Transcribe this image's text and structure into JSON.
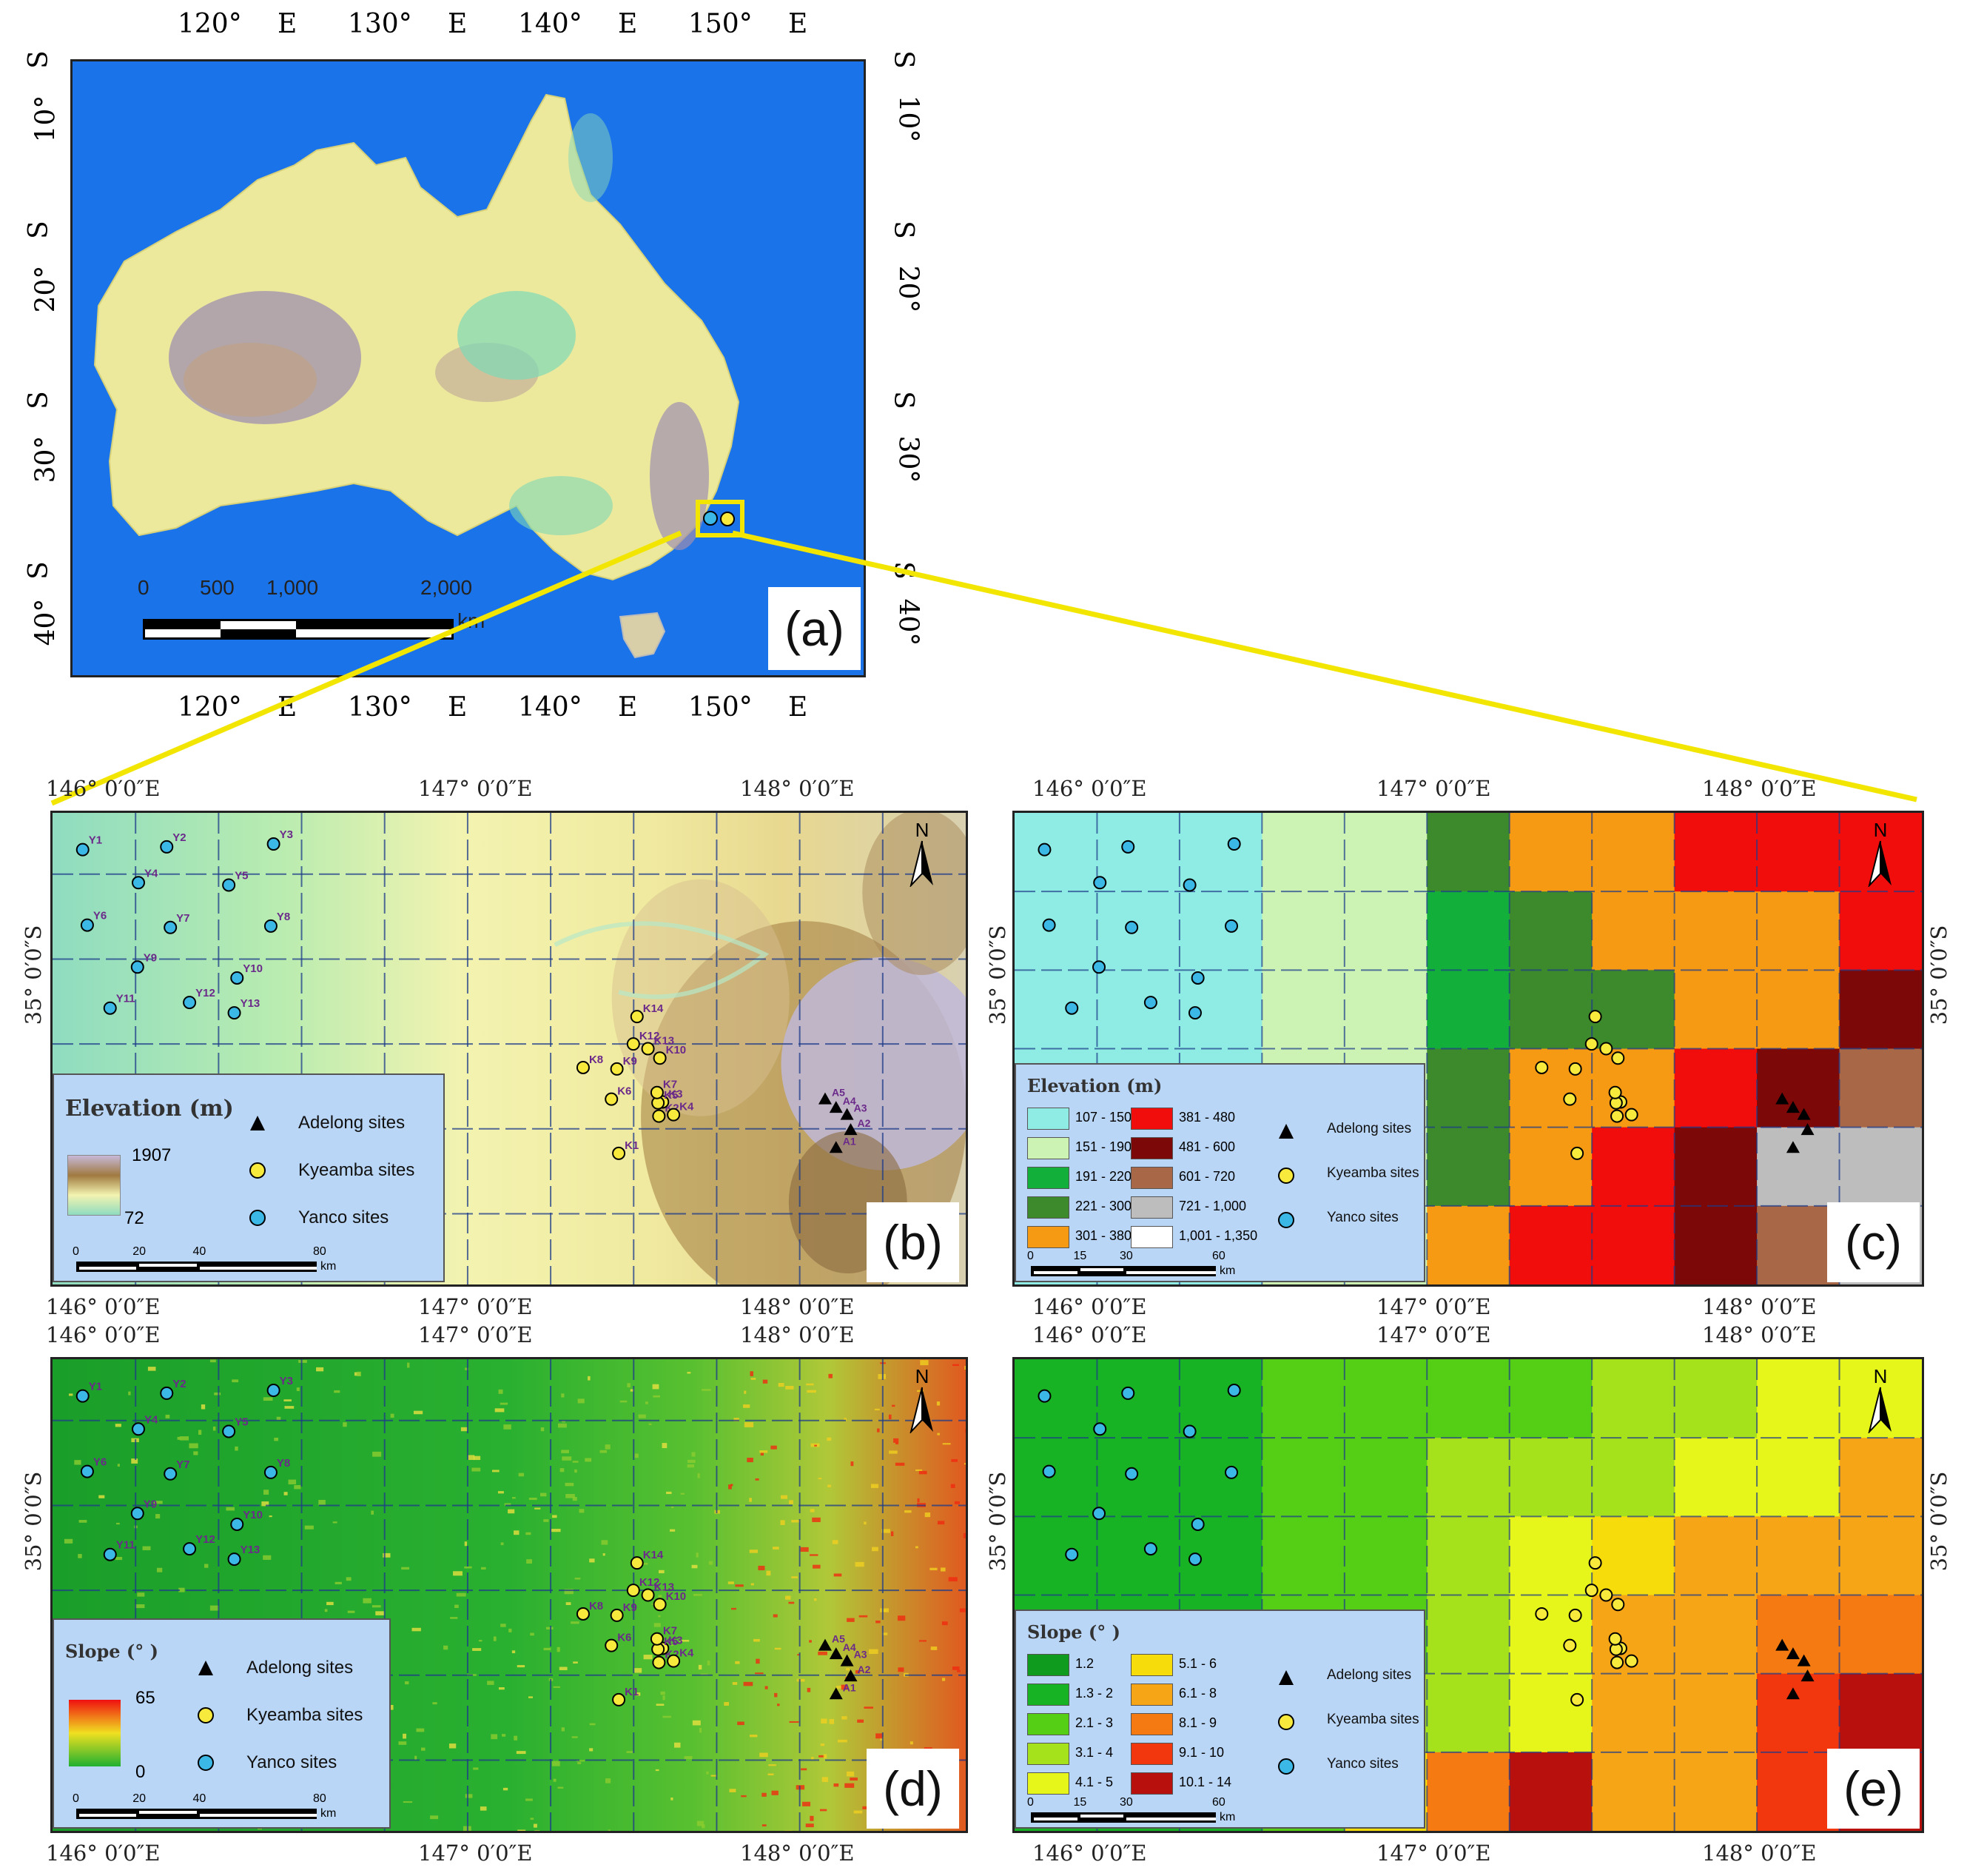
{
  "panel_a": {
    "label": "(a)",
    "lon_ticks": [
      {
        "deg": "120°",
        "hemi": "E"
      },
      {
        "deg": "130°",
        "hemi": "E"
      },
      {
        "deg": "140°",
        "hemi": "E"
      },
      {
        "deg": "150°",
        "hemi": "E"
      }
    ],
    "lat_ticks": [
      {
        "deg": "10°",
        "hemi": "S"
      },
      {
        "deg": "20°",
        "hemi": "S"
      },
      {
        "deg": "30°",
        "hemi": "S"
      },
      {
        "deg": "40°",
        "hemi": "S"
      }
    ],
    "scalebar": {
      "labels": [
        "0",
        "500",
        "1,000",
        "2,000"
      ],
      "unit": "km"
    },
    "colors": {
      "ocean": "#1a73e8",
      "land": "#ece99c",
      "highland": "#8b7fa8",
      "lowland": "#7fd8b8",
      "inset_box": "#f2e600"
    }
  },
  "top_ticks": {
    "lon": [
      "146°  0′0″E",
      "147°  0′0″E",
      "148°  0′0″E"
    ],
    "lat": "35°  0′0″S"
  },
  "bottom_ticks": {
    "lon": [
      "146°  0′0″E",
      "147°  0′0″E",
      "148°  0′0″E"
    ]
  },
  "panel_b": {
    "label": "(b)",
    "legend_title": "Elevation (m)",
    "ramp_max": "1907",
    "ramp_min": "72",
    "items": [
      "Adelong sites",
      "Kyeamba sites",
      "Yanco sites"
    ],
    "scale": {
      "labels": [
        "0",
        "20",
        "40",
        "80"
      ],
      "unit": "km"
    }
  },
  "panel_c": {
    "label": "(c)",
    "legend_title": "Elevation (m)",
    "classes": [
      {
        "range": "107 - 150",
        "color": "#8eece4"
      },
      {
        "range": "151 - 190",
        "color": "#ccf2b4"
      },
      {
        "range": "191 - 220",
        "color": "#12b03a"
      },
      {
        "range": "221 - 300",
        "color": "#3d8a2c"
      },
      {
        "range": "301 - 380",
        "color": "#f59a12"
      },
      {
        "range": "381 - 480",
        "color": "#f20d0d"
      },
      {
        "range": "481 - 600",
        "color": "#7d0808"
      },
      {
        "range": "601 - 720",
        "color": "#a86848"
      },
      {
        "range": "721 - 1,000",
        "color": "#bdbdbd"
      },
      {
        "range": "1,001 - 1,350",
        "color": "#ffffff"
      }
    ],
    "items": [
      "Adelong sites",
      "Kyeamba sites",
      "Yanco sites"
    ],
    "scale": {
      "labels": [
        "0",
        "15",
        "30",
        "60"
      ],
      "unit": "km"
    }
  },
  "panel_d": {
    "label": "(d)",
    "legend_title": "Slope (° )",
    "ramp_max": "65",
    "ramp_min": "0",
    "items": [
      "Adelong sites",
      "Kyeamba sites",
      "Yanco sites"
    ],
    "scale": {
      "labels": [
        "0",
        "20",
        "40",
        "80"
      ],
      "unit": "km"
    }
  },
  "panel_e": {
    "label": "(e)",
    "legend_title": "Slope (° )",
    "classes": [
      {
        "range": "1.2",
        "color": "#0f9b1e"
      },
      {
        "range": "1.3 - 2",
        "color": "#18b324"
      },
      {
        "range": "2.1 - 3",
        "color": "#55cf16"
      },
      {
        "range": "3.1 - 4",
        "color": "#a6e21c"
      },
      {
        "range": "4.1 - 5",
        "color": "#e6f51a"
      },
      {
        "range": "5.1 - 6",
        "color": "#f5dc0a"
      },
      {
        "range": "6.1 - 8",
        "color": "#f5a516"
      },
      {
        "range": "8.1 - 9",
        "color": "#f57a12"
      },
      {
        "range": "9.1 - 10",
        "color": "#f2360d"
      },
      {
        "range": "10.1 - 14",
        "color": "#b8100c"
      }
    ],
    "items": [
      "Adelong sites",
      "Kyeamba sites",
      "Yanco sites"
    ],
    "scale": {
      "labels": [
        "0",
        "15",
        "30",
        "60"
      ],
      "unit": "km"
    }
  },
  "north_arrow": "N",
  "sites": {
    "yanco": [
      "Y1",
      "Y2",
      "Y3",
      "Y4",
      "Y5",
      "Y6",
      "Y7",
      "Y8",
      "Y9",
      "Y10",
      "Y11",
      "Y12",
      "Y13"
    ],
    "kyeamba": [
      "K1",
      "K2",
      "K3",
      "K4",
      "K5",
      "K6",
      "K7",
      "K8",
      "K9",
      "K10",
      "K12",
      "K13",
      "K14"
    ],
    "adelong": [
      "A1",
      "A2",
      "A3",
      "A4",
      "A5"
    ],
    "colors": {
      "yanco": "#3cb8e6",
      "kyeamba": "#f7ea3c",
      "adelong": "#000000",
      "site_label": "#6b2a8a"
    }
  },
  "connector_color": "#f2e600"
}
